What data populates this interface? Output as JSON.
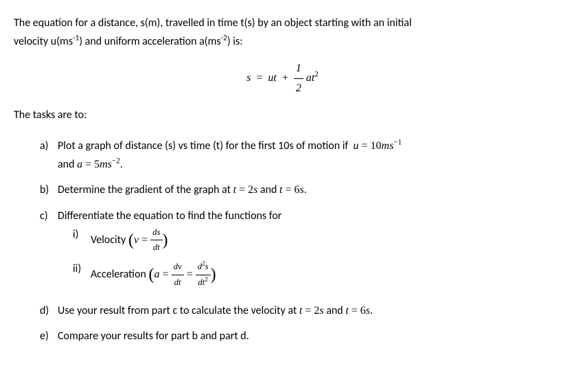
{
  "intro": {
    "line1_a": "The equation for a distance, s(m), travelled in time t(s) by an object starting with an initial",
    "line2_a": "velocity u(ms",
    "line2_b": ") and uniform acceleration a(ms",
    "line2_c": ") is:",
    "exp1": "-1",
    "exp2": "-2"
  },
  "equation": {
    "lhs_s": "s",
    "eq": "=",
    "ut": "ut",
    "plus": "+",
    "half_num": "1",
    "half_den": "2",
    "at": "at",
    "sq": "2"
  },
  "tasks_label": "The tasks are to:",
  "tasks": {
    "a": {
      "marker": "a)",
      "text1": "Plot a graph of distance (s) vs time (t) for the first 10s of motion if ",
      "u_eq": "u",
      "eq1": "=",
      "u_val": "10",
      "u_unit": "ms",
      "u_exp": "−1",
      "text2_a": "and ",
      "a_eq": "a",
      "eq2": "=",
      "a_val": "5",
      "a_unit": "ms",
      "a_exp": "−2",
      "period": "."
    },
    "b": {
      "marker": "b)",
      "text1": "Determine the gradient of the graph at ",
      "t1": "t",
      "eq1": "=",
      "v1": "2",
      "s1": "s",
      "and": " and ",
      "t2": "t",
      "eq2": "=",
      "v2": "6",
      "s2": "s",
      "period": "."
    },
    "c": {
      "marker": "c)",
      "text": "Differentiate the equation to find the functions for",
      "i": {
        "marker": "i)",
        "label": "Velocity ",
        "v": "v",
        "eq": "=",
        "num": "ds",
        "den": "dt"
      },
      "ii": {
        "marker": "ii)",
        "label": "Acceleration ",
        "a": "a",
        "eq1": "=",
        "num1": "dv",
        "den1": "dt",
        "eq2": "=",
        "num2_a": "d",
        "num2_b": "s",
        "num2_exp": "2",
        "den2_a": "dt",
        "den2_exp": "2"
      }
    },
    "d": {
      "marker": "d)",
      "text1": "Use your result from part c to calculate the velocity at ",
      "t1": "t",
      "eq1": "=",
      "v1": "2",
      "s1": "s",
      "and": " and ",
      "t2": "t",
      "eq2": "=",
      "v2": "6",
      "s2": "s",
      "period": "."
    },
    "e": {
      "marker": "e)",
      "text": "Compare your results for part b and part d."
    }
  }
}
